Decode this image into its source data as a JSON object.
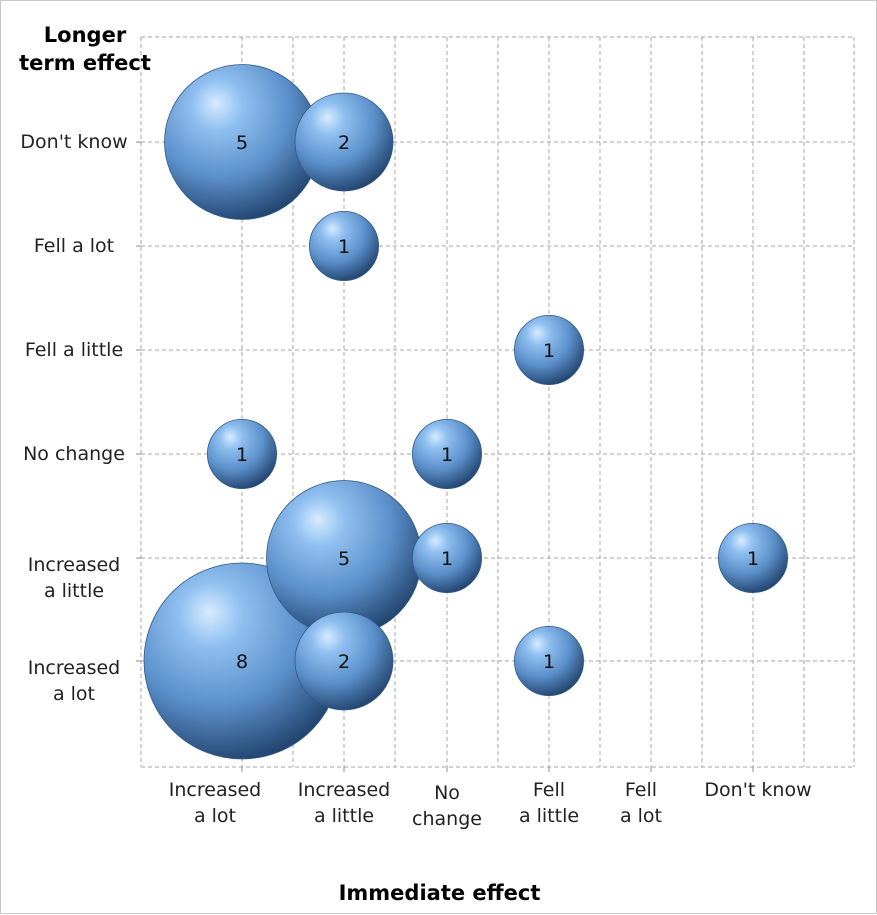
{
  "chart_data": {
    "type": "bubble",
    "title": "",
    "xlabel": "Immediate effect",
    "ylabel": "Longer term effect",
    "x_categories": [
      [
        "Increased",
        "a lot"
      ],
      [
        "Increased",
        "a little"
      ],
      [
        "No",
        "change"
      ],
      [
        "Fell",
        "a little"
      ],
      [
        "Fell",
        "a lot"
      ],
      [
        "Don't know"
      ]
    ],
    "y_categories": [
      [
        "Increased",
        "a lot"
      ],
      [
        "Increased",
        "a little"
      ],
      [
        "No change"
      ],
      [
        "Fell a little"
      ],
      [
        "Fell a lot"
      ],
      [
        "Don't know"
      ]
    ],
    "points": [
      {
        "x": "Increased a lot",
        "y": "Increased a lot",
        "value": 8
      },
      {
        "x": "Increased a little",
        "y": "Increased a lot",
        "value": 2
      },
      {
        "x": "Fell a little",
        "y": "Increased a lot",
        "value": 1
      },
      {
        "x": "Increased a little",
        "y": "Increased a little",
        "value": 5
      },
      {
        "x": "No change",
        "y": "Increased a little",
        "value": 1
      },
      {
        "x": "Don't know",
        "y": "Increased a little",
        "value": 1
      },
      {
        "x": "Increased a lot",
        "y": "No change",
        "value": 1
      },
      {
        "x": "No change",
        "y": "No change",
        "value": 1
      },
      {
        "x": "Fell a little",
        "y": "Fell a little",
        "value": 1
      },
      {
        "x": "Increased a little",
        "y": "Fell a lot",
        "value": 1
      },
      {
        "x": "Increased a lot",
        "y": "Don't know",
        "value": 5
      },
      {
        "x": "Increased a little",
        "y": "Don't know",
        "value": 2
      }
    ],
    "grid": true,
    "bubble_color": "#5b8fc9"
  }
}
